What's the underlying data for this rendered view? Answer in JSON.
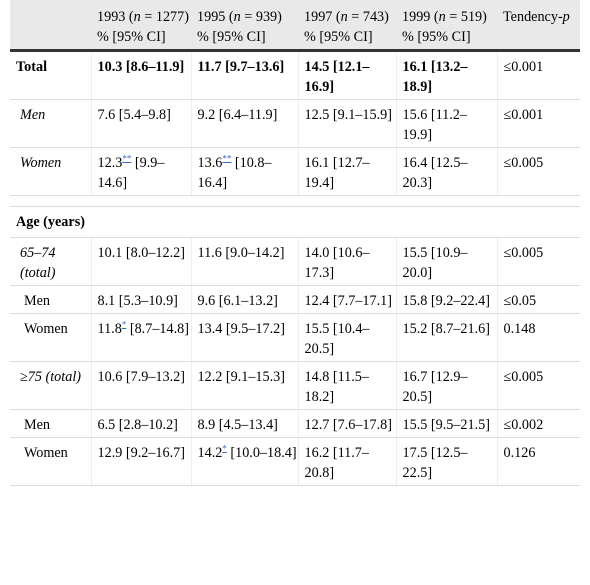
{
  "header": {
    "years": [
      {
        "year": "1993 (",
        "n": "n",
        "count": " = 1277)"
      },
      {
        "year": "1995 (",
        "n": "n",
        "count": " = 939)"
      },
      {
        "year": "1997 (",
        "n": "n",
        "count": " = 743)"
      },
      {
        "year": "1999 (",
        "n": "n",
        "count": " = 519)"
      }
    ],
    "tendency_label": "Tendency-",
    "tendency_p": "p",
    "unit": "% [95% CI]"
  },
  "rows": [
    {
      "label": "Total",
      "style": "bold",
      "cells": [
        "10.3 [8.6–11.9]",
        "11.7 [9.7–13.6]",
        "14.5 [12.1–16.9]",
        "16.1 [13.2–18.9]"
      ],
      "p": "≤0.001"
    },
    {
      "label": "Men",
      "style": "ital",
      "cells": [
        "7.6 [5.4–9.8]",
        "9.2 [6.4–11.9]",
        "12.5 [9.1–15.9]",
        "15.6 [11.2–19.9]"
      ],
      "p": "≤0.001"
    },
    {
      "label": "Women",
      "style": "ital",
      "cells": [
        "12.3** [9.9–14.6]",
        "13.6** [10.8–16.4]",
        "16.1 [12.7–19.4]",
        "16.4 [12.5–20.3]"
      ],
      "p": "≤0.005"
    }
  ],
  "age_section": {
    "title": "Age (years)",
    "rows": [
      {
        "label": "65–74 (total)",
        "style": "ital",
        "cells": [
          "10.1 [8.0–12.2]",
          "11.6 [9.0–14.2]",
          "14.0 [10.6–17.3]",
          "15.5 [10.9–20.0]"
        ],
        "p": "≤0.005"
      },
      {
        "label": "Men",
        "style": "plain",
        "cells": [
          "8.1 [5.3–10.9]",
          "9.6 [6.1–13.2]",
          "12.4 [7.7–17.1]",
          "15.8 [9.2–22.4]"
        ],
        "p": "≤0.05"
      },
      {
        "label": "Women",
        "style": "plain",
        "cells": [
          "11.8* [8.7–14.8]",
          "13.4 [9.5–17.2]",
          "15.5 [10.4–20.5]",
          "15.2 [8.7–21.6]"
        ],
        "p": "0.148"
      },
      {
        "label": "≥75 (total)",
        "style": "ital",
        "cells": [
          "10.6 [7.9–13.2]",
          "12.2 [9.1–15.3]",
          "14.8 [11.5–18.2]",
          "16.7 [12.9–20.5]"
        ],
        "p": "≤0.005"
      },
      {
        "label": "Men",
        "style": "plain",
        "cells": [
          "6.5 [2.8–10.2]",
          "8.9 [4.5–13.4]",
          "12.7 [7.6–17.8]",
          "15.5 [9.5–21.5]"
        ],
        "p": "≤0.002"
      },
      {
        "label": "Women",
        "style": "plain",
        "cells": [
          "12.9 [9.2–16.7]",
          "14.2* [10.0–18.4]",
          "16.2 [11.7–20.8]",
          "17.5 [12.5–22.5]"
        ],
        "p": "0.126"
      }
    ]
  }
}
